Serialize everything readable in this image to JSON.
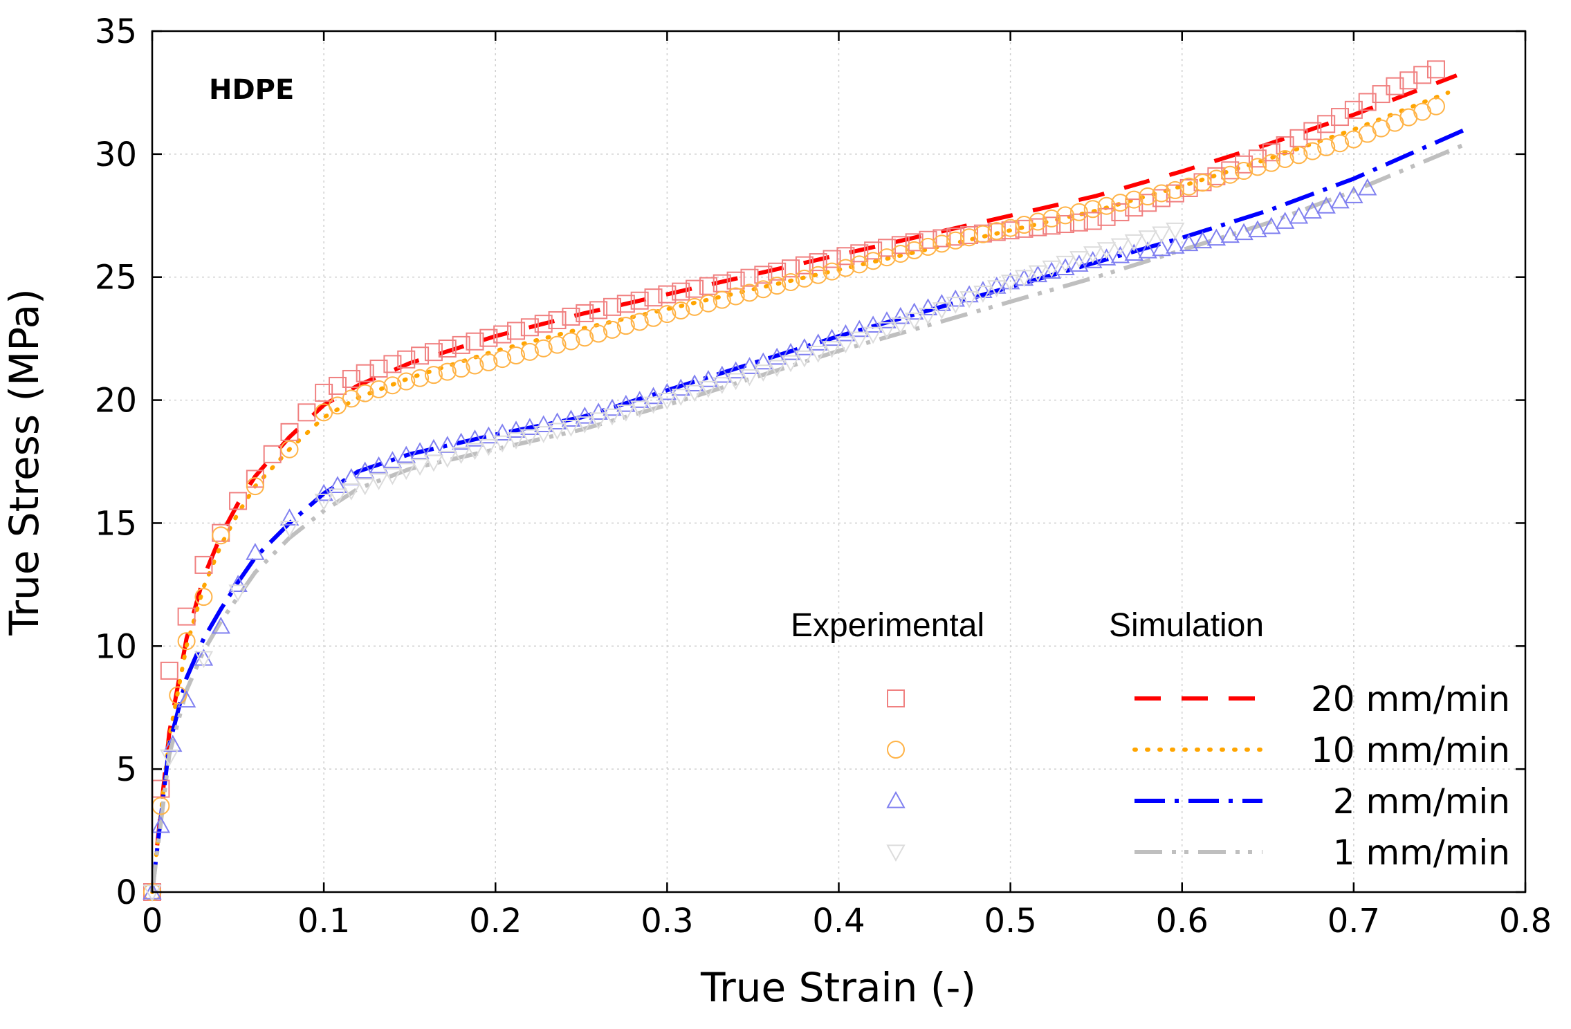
{
  "chart_data": {
    "type": "line",
    "title": "",
    "annotation": "HDPE",
    "xlabel": "True Strain (-)",
    "ylabel": "True Stress (MPa)",
    "xlim": [
      0,
      0.8
    ],
    "ylim": [
      0,
      35
    ],
    "xticks": [
      0,
      0.1,
      0.2,
      0.3,
      0.4,
      0.5,
      0.6,
      0.7,
      0.8
    ],
    "xtick_labels": [
      "0",
      "0.1",
      "0.2",
      "0.3",
      "0.4",
      "0.5",
      "0.6",
      "0.7",
      "0.8"
    ],
    "yticks": [
      0,
      5,
      10,
      15,
      20,
      25,
      30,
      35
    ],
    "ytick_labels": [
      "0",
      "5",
      "10",
      "15",
      "20",
      "25",
      "30",
      "35"
    ],
    "grid": true,
    "legend": {
      "placement": "bottom-right",
      "experimental_header": "Experimental",
      "simulation_header": "Simulation"
    },
    "series": [
      {
        "name": "20 mm/min",
        "color": "#ff0000",
        "exp_color": "#f08080",
        "marker": "square",
        "line_style": "dashed",
        "experimental": {
          "x": [
            0,
            0.005,
            0.01,
            0.02,
            0.03,
            0.04,
            0.05,
            0.06,
            0.07,
            0.08,
            0.09,
            0.1,
            0.12,
            0.15,
            0.2,
            0.25,
            0.3,
            0.35,
            0.4,
            0.45,
            0.5,
            0.55,
            0.6,
            0.65,
            0.7,
            0.725,
            0.75
          ],
          "y": [
            0,
            4.2,
            9.0,
            11.2,
            13.3,
            14.6,
            15.9,
            16.8,
            17.8,
            18.7,
            19.5,
            20.3,
            21.0,
            21.7,
            22.6,
            23.5,
            24.3,
            25.0,
            25.8,
            26.5,
            26.9,
            27.3,
            28.5,
            30.0,
            31.8,
            32.8,
            33.5
          ]
        },
        "simulation": {
          "x": [
            0,
            0.01,
            0.02,
            0.03,
            0.04,
            0.05,
            0.06,
            0.08,
            0.1,
            0.12,
            0.15,
            0.2,
            0.25,
            0.3,
            0.35,
            0.4,
            0.45,
            0.5,
            0.55,
            0.6,
            0.65,
            0.7,
            0.76
          ],
          "y": [
            0,
            6.5,
            10.3,
            12.8,
            14.5,
            15.8,
            16.9,
            18.5,
            19.8,
            20.6,
            21.5,
            22.6,
            23.5,
            24.3,
            25.1,
            25.9,
            26.7,
            27.5,
            28.3,
            29.3,
            30.4,
            31.6,
            33.2
          ]
        }
      },
      {
        "name": "10 mm/min",
        "color": "#ffa500",
        "exp_color": "#ffb347",
        "marker": "circle",
        "line_style": "dotted",
        "experimental": {
          "x": [
            0,
            0.005,
            0.015,
            0.02,
            0.03,
            0.04,
            0.06,
            0.08,
            0.1,
            0.12,
            0.15,
            0.2,
            0.25,
            0.3,
            0.35,
            0.4,
            0.45,
            0.5,
            0.55,
            0.6,
            0.65,
            0.7,
            0.75
          ],
          "y": [
            0,
            3.5,
            8.0,
            10.2,
            12.0,
            14.5,
            16.5,
            18.0,
            19.5,
            20.2,
            20.8,
            21.6,
            22.5,
            23.5,
            24.4,
            25.3,
            26.2,
            27.0,
            27.8,
            28.6,
            29.6,
            30.6,
            32.0
          ]
        },
        "simulation": {
          "x": [
            0,
            0.01,
            0.02,
            0.03,
            0.04,
            0.05,
            0.06,
            0.08,
            0.1,
            0.12,
            0.15,
            0.2,
            0.25,
            0.3,
            0.35,
            0.4,
            0.45,
            0.5,
            0.55,
            0.6,
            0.65,
            0.7,
            0.755
          ],
          "y": [
            0,
            6.3,
            10.0,
            12.4,
            14.1,
            15.4,
            16.5,
            18.0,
            19.3,
            20.1,
            20.9,
            22.0,
            22.9,
            23.7,
            24.5,
            25.3,
            26.1,
            26.9,
            27.7,
            28.7,
            29.8,
            31.0,
            32.5
          ]
        }
      },
      {
        "name": "2 mm/min",
        "color": "#0000ff",
        "exp_color": "#8080f0",
        "marker": "triangle-up",
        "line_style": "dash-dot",
        "experimental": {
          "x": [
            0,
            0.005,
            0.012,
            0.02,
            0.03,
            0.04,
            0.05,
            0.06,
            0.08,
            0.1,
            0.12,
            0.15,
            0.2,
            0.25,
            0.3,
            0.35,
            0.4,
            0.45,
            0.5,
            0.55,
            0.6,
            0.65,
            0.7,
            0.71
          ],
          "y": [
            0,
            2.7,
            6.0,
            7.8,
            9.5,
            10.8,
            12.5,
            13.8,
            15.2,
            16.2,
            17.0,
            17.8,
            18.6,
            19.3,
            20.3,
            21.4,
            22.6,
            23.7,
            24.8,
            25.7,
            26.3,
            27.0,
            28.3,
            28.7
          ]
        },
        "simulation": {
          "x": [
            0,
            0.01,
            0.02,
            0.03,
            0.04,
            0.05,
            0.06,
            0.08,
            0.1,
            0.12,
            0.15,
            0.2,
            0.25,
            0.3,
            0.35,
            0.4,
            0.45,
            0.5,
            0.55,
            0.6,
            0.65,
            0.7,
            0.765
          ],
          "y": [
            0,
            6.0,
            8.7,
            10.3,
            11.5,
            12.6,
            13.6,
            15.0,
            16.2,
            17.1,
            17.8,
            18.6,
            19.3,
            20.4,
            21.5,
            22.6,
            23.6,
            24.6,
            25.6,
            26.6,
            27.7,
            29.0,
            31.0
          ]
        }
      },
      {
        "name": "1 mm/min",
        "color": "#bfbfbf",
        "exp_color": "#dcdcdc",
        "marker": "triangle-down",
        "line_style": "dash-dot-dot",
        "experimental": {
          "x": [
            0,
            0.01,
            0.03,
            0.05,
            0.08,
            0.1,
            0.15,
            0.2,
            0.25,
            0.3,
            0.35,
            0.4,
            0.45,
            0.5,
            0.55,
            0.6
          ],
          "y": [
            0,
            5.5,
            9.5,
            12.2,
            14.8,
            15.9,
            17.2,
            18.2,
            19.0,
            20.0,
            21.0,
            22.2,
            23.4,
            24.8,
            26.0,
            27.0
          ]
        },
        "simulation": {
          "x": [
            0,
            0.01,
            0.02,
            0.03,
            0.04,
            0.05,
            0.06,
            0.08,
            0.1,
            0.12,
            0.15,
            0.2,
            0.25,
            0.3,
            0.35,
            0.4,
            0.45,
            0.5,
            0.55,
            0.6,
            0.65,
            0.7,
            0.765
          ],
          "y": [
            0,
            5.6,
            8.2,
            9.8,
            11.0,
            12.0,
            13.0,
            14.4,
            15.5,
            16.4,
            17.2,
            18.0,
            18.8,
            19.8,
            20.9,
            22.0,
            23.0,
            24.0,
            25.0,
            26.1,
            27.2,
            28.5,
            30.4
          ]
        }
      }
    ]
  }
}
